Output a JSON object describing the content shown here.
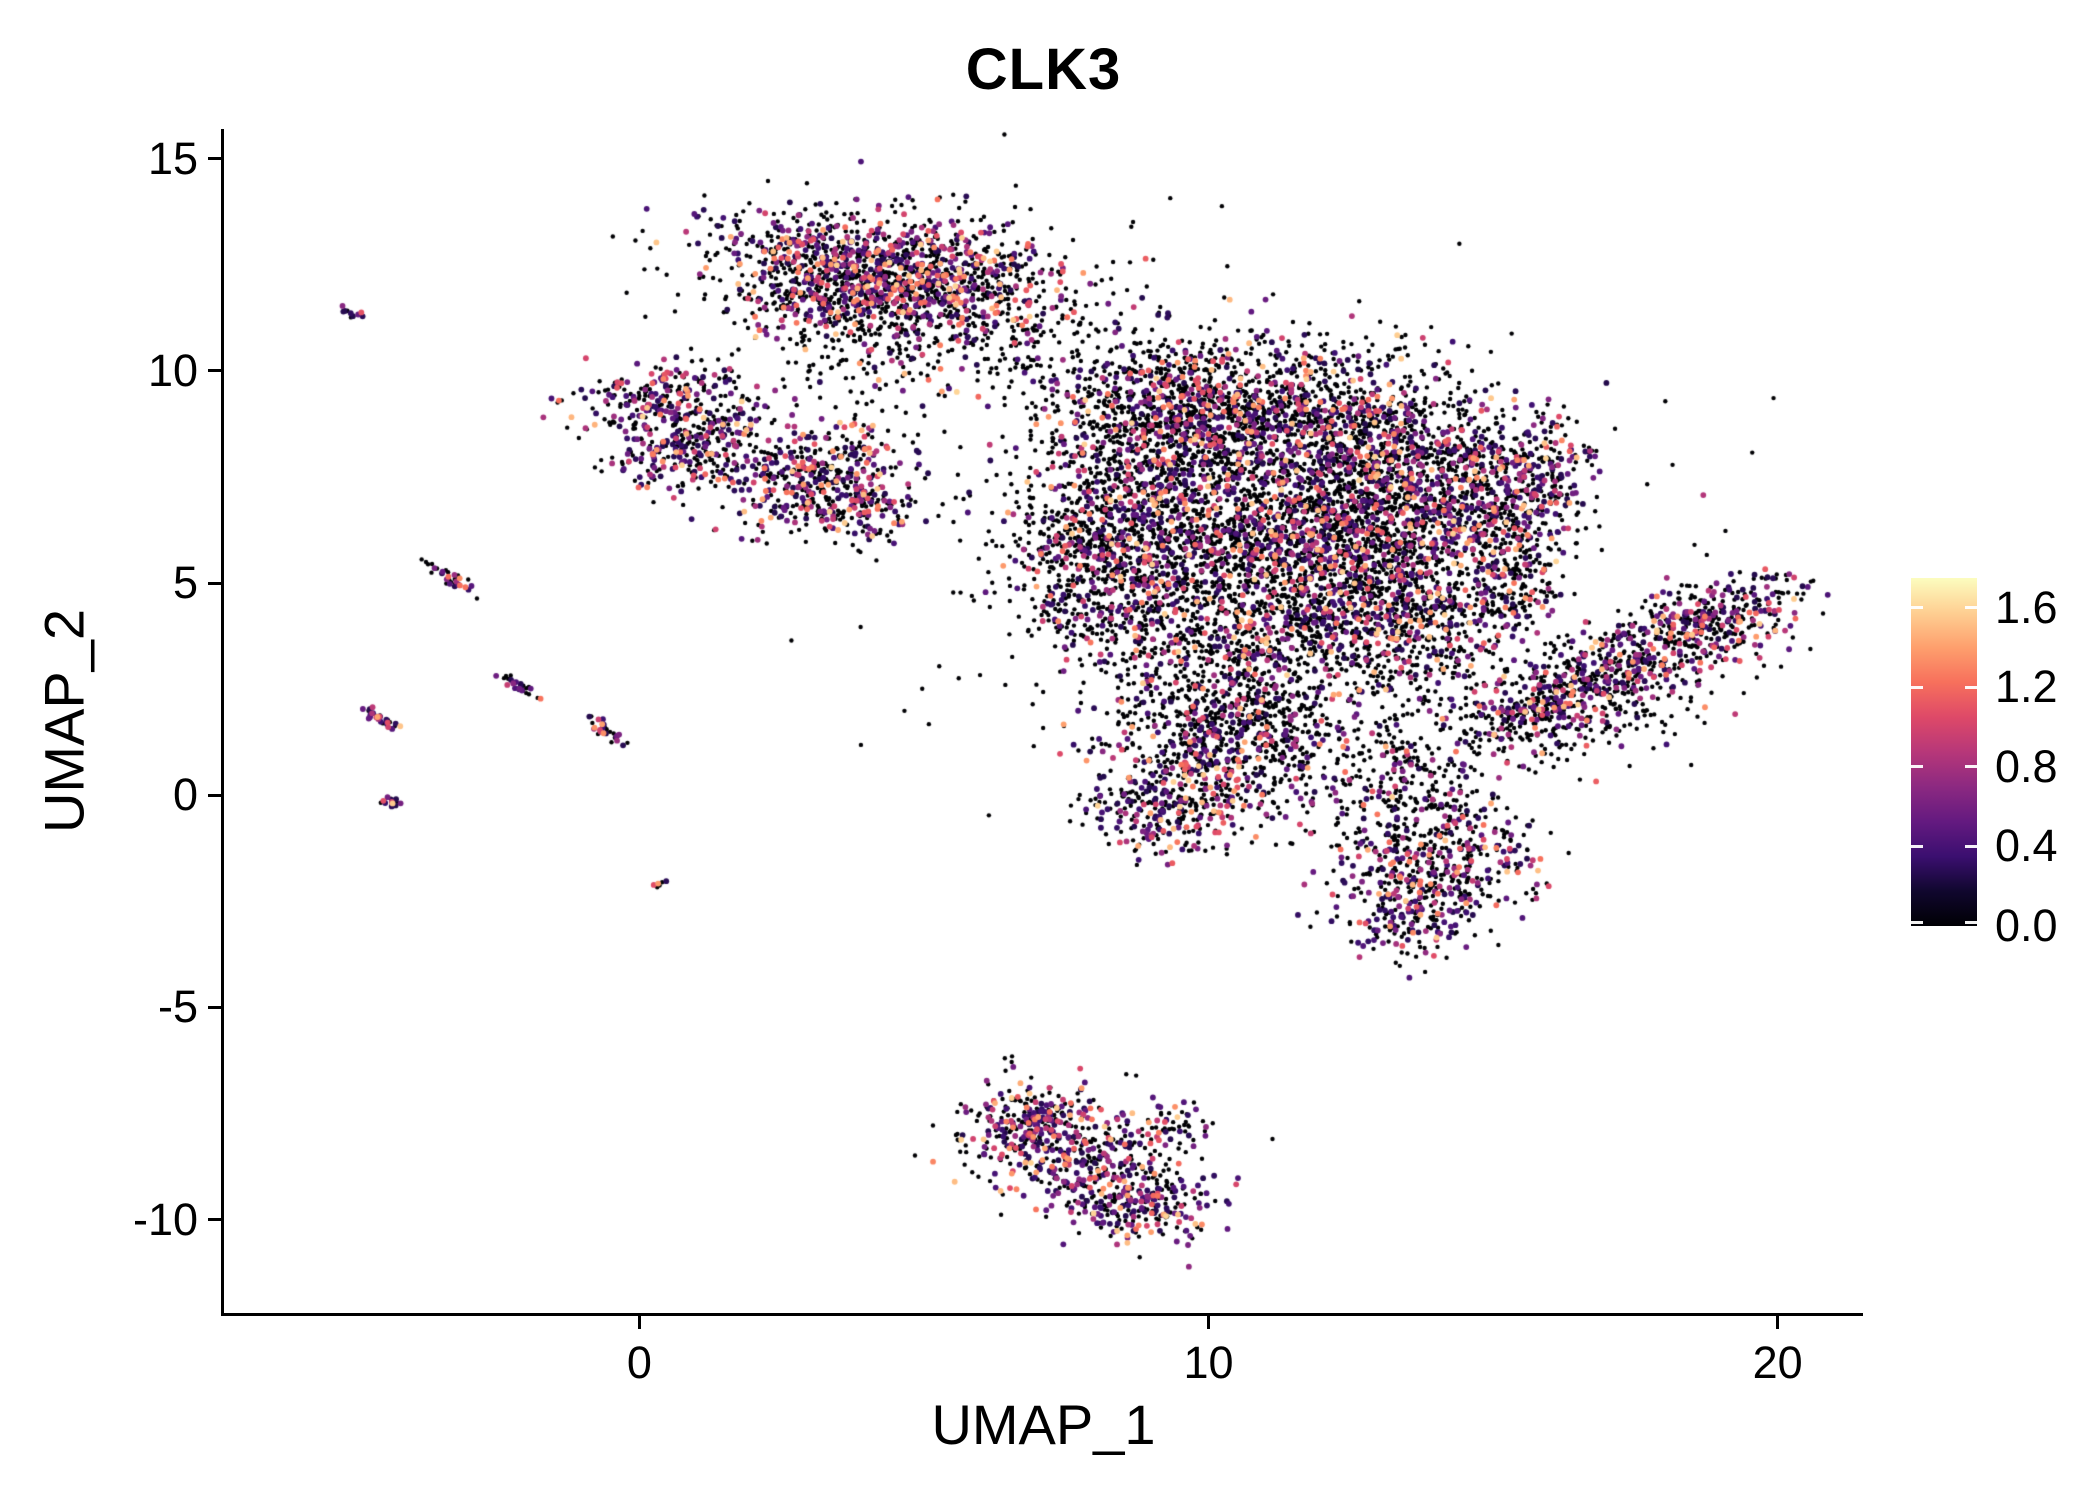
{
  "chart_data": {
    "type": "scatter",
    "title": "CLK3",
    "xlabel": "UMAP_1",
    "ylabel": "UMAP_2",
    "xlim": [
      -7.3,
      21.5
    ],
    "ylim": [
      -12.2,
      15.7
    ],
    "grid": false,
    "x_ticks": [
      {
        "v": 0,
        "label": "0"
      },
      {
        "v": 10,
        "label": "10"
      },
      {
        "v": 20,
        "label": "20"
      }
    ],
    "y_ticks": [
      {
        "v": 15,
        "label": "15"
      },
      {
        "v": 10,
        "label": "10"
      },
      {
        "v": 5,
        "label": "5"
      },
      {
        "v": 0,
        "label": "0"
      },
      {
        "v": -5,
        "label": "-5"
      },
      {
        "v": -10,
        "label": "-10"
      }
    ],
    "point_color_zero": "#000004",
    "legend": {
      "position": "right",
      "colormap": "magma",
      "scale_max": 1.75,
      "ticks": [
        {
          "v": 1.6,
          "label": "1.6"
        },
        {
          "v": 1.2,
          "label": "1.2"
        },
        {
          "v": 0.8,
          "label": "0.8"
        },
        {
          "v": 0.4,
          "label": "0.4"
        },
        {
          "v": 0.0,
          "label": "0.0"
        }
      ],
      "stops": [
        {
          "t": 0.0,
          "hex": "#000004"
        },
        {
          "t": 0.1,
          "hex": "#10072E"
        },
        {
          "t": 0.2,
          "hex": "#3B0F70"
        },
        {
          "t": 0.3,
          "hex": "#641A80"
        },
        {
          "t": 0.4,
          "hex": "#8C2981"
        },
        {
          "t": 0.5,
          "hex": "#B73779"
        },
        {
          "t": 0.6,
          "hex": "#DE4968"
        },
        {
          "t": 0.7,
          "hex": "#F7705C"
        },
        {
          "t": 0.8,
          "hex": "#FE9F6D"
        },
        {
          "t": 0.9,
          "hex": "#FECF92"
        },
        {
          "t": 1.0,
          "hex": "#FCFDBF"
        }
      ]
    },
    "cluster_fields": [
      "center_x",
      "center_y",
      "sigma_x",
      "sigma_y",
      "rotation_deg",
      "n_points",
      "fraction_expressing"
    ],
    "clusters": [
      [
        4.2,
        12.6,
        1.5,
        0.55,
        -8,
        700,
        0.45
      ],
      [
        3.2,
        11.9,
        0.8,
        0.5,
        0,
        300,
        0.45
      ],
      [
        4.9,
        11.7,
        0.7,
        0.5,
        0,
        250,
        0.4
      ],
      [
        4.5,
        12.0,
        2.0,
        1.1,
        0,
        250,
        0.2
      ],
      [
        4.0,
        10.6,
        0.9,
        0.7,
        0,
        150,
        0.25
      ],
      [
        6.3,
        11.6,
        0.8,
        0.8,
        0,
        140,
        0.3
      ],
      [
        7.2,
        10.3,
        0.9,
        0.8,
        0,
        90,
        0.2
      ],
      [
        0.4,
        9.4,
        0.75,
        0.45,
        0,
        220,
        0.5
      ],
      [
        0.6,
        8.2,
        0.6,
        0.55,
        0,
        200,
        0.5
      ],
      [
        1.5,
        8.6,
        0.4,
        0.4,
        0,
        80,
        0.4
      ],
      [
        3.0,
        7.5,
        0.85,
        0.6,
        20,
        400,
        0.5
      ],
      [
        3.9,
        6.9,
        0.5,
        0.4,
        0,
        150,
        0.45
      ],
      [
        9.3,
        9.0,
        1.1,
        0.9,
        0,
        800,
        0.3
      ],
      [
        11.5,
        8.8,
        1.5,
        1.0,
        0,
        1000,
        0.3
      ],
      [
        13.2,
        7.5,
        1.0,
        1.0,
        0,
        700,
        0.35
      ],
      [
        10.3,
        6.3,
        1.5,
        1.2,
        0,
        1100,
        0.3
      ],
      [
        12.5,
        5.5,
        1.2,
        1.0,
        0,
        800,
        0.35
      ],
      [
        8.3,
        4.8,
        0.9,
        1.0,
        0,
        450,
        0.3
      ],
      [
        10.8,
        3.6,
        1.2,
        0.9,
        0,
        550,
        0.3
      ],
      [
        13.4,
        3.8,
        0.9,
        0.8,
        0,
        400,
        0.35
      ],
      [
        14.9,
        6.8,
        0.6,
        1.1,
        0,
        350,
        0.4
      ],
      [
        15.8,
        7.3,
        0.45,
        0.8,
        -15,
        220,
        0.45
      ],
      [
        15.3,
        4.9,
        0.5,
        0.7,
        0,
        180,
        0.35
      ],
      [
        11.5,
        6.0,
        2.6,
        2.2,
        0,
        500,
        0.15
      ],
      [
        8.0,
        6.5,
        0.8,
        0.8,
        0,
        300,
        0.3
      ],
      [
        9.9,
        0.8,
        0.9,
        0.9,
        0,
        450,
        0.35
      ],
      [
        9.2,
        -0.3,
        0.6,
        0.55,
        0,
        220,
        0.4
      ],
      [
        10.8,
        1.8,
        0.8,
        0.6,
        0,
        250,
        0.3
      ],
      [
        12.3,
        1.0,
        1.2,
        0.9,
        0,
        180,
        0.2
      ],
      [
        14.0,
        -1.6,
        0.95,
        0.8,
        -10,
        450,
        0.4
      ],
      [
        13.4,
        -2.9,
        0.5,
        0.5,
        0,
        140,
        0.45
      ],
      [
        13.6,
        0.3,
        0.7,
        0.6,
        0,
        150,
        0.25
      ],
      [
        17.2,
        3.0,
        1.5,
        0.5,
        27,
        550,
        0.4
      ],
      [
        18.9,
        4.2,
        0.8,
        0.45,
        27,
        250,
        0.45
      ],
      [
        15.8,
        2.0,
        0.6,
        0.4,
        27,
        170,
        0.35
      ],
      [
        16.8,
        1.6,
        1.2,
        0.5,
        20,
        120,
        0.2
      ],
      [
        7.6,
        -8.3,
        1.0,
        0.7,
        -15,
        450,
        0.5
      ],
      [
        8.6,
        -9.5,
        0.7,
        0.5,
        -20,
        250,
        0.5
      ],
      [
        6.8,
        -7.6,
        0.5,
        0.35,
        0,
        120,
        0.45
      ],
      [
        9.4,
        -7.7,
        0.3,
        0.25,
        0,
        40,
        0.4
      ],
      [
        -5.1,
        11.4,
        0.12,
        0.05,
        -40,
        12,
        0.6
      ],
      [
        -3.35,
        5.15,
        0.28,
        0.07,
        -40,
        35,
        0.55
      ],
      [
        -2.1,
        2.55,
        0.22,
        0.06,
        -40,
        28,
        0.55
      ],
      [
        -4.55,
        1.8,
        0.25,
        0.07,
        -40,
        32,
        0.6
      ],
      [
        -0.55,
        1.5,
        0.28,
        0.08,
        -40,
        32,
        0.55
      ],
      [
        -4.4,
        -0.1,
        0.1,
        0.06,
        -40,
        14,
        0.6
      ],
      [
        0.35,
        -2.1,
        0.07,
        0.05,
        0,
        8,
        0.5
      ],
      [
        10.5,
        6.0,
        4.0,
        3.0,
        0,
        130,
        0.15
      ]
    ],
    "note": "Seurat-style UMAP feature plot of CLK3 expression; ~14k cells rendered from approximate cluster densities. Expression values range 0 (black) to ~1.6 (pale yellow) on a magma color scale."
  }
}
